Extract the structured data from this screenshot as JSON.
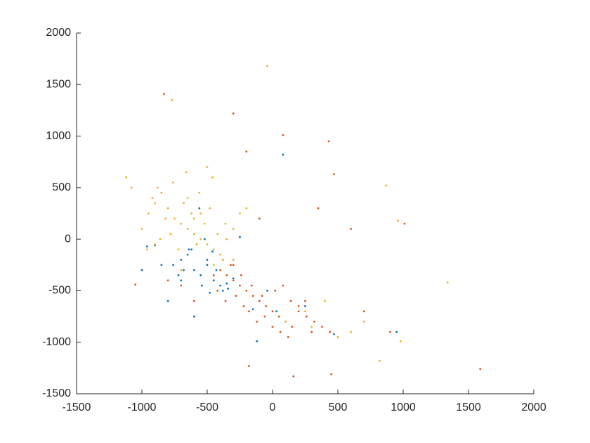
{
  "chart_data": {
    "type": "scatter",
    "xlim": [
      -1500,
      2000
    ],
    "xticks": [
      -1500,
      -1000,
      -500,
      0,
      500,
      1000,
      1500,
      2000
    ],
    "ylim": [
      -1500,
      2000
    ],
    "yticks": [
      -1500,
      -1000,
      -500,
      0,
      500,
      1000,
      1500,
      2000
    ],
    "series": [
      {
        "color": "#0072BD",
        "x": [
          -700,
          -650,
          -600,
          -550,
          -500,
          -450,
          -400,
          -620,
          -580,
          -520,
          -480,
          -350,
          -300,
          -680,
          -720,
          -760,
          -560,
          -430,
          -380,
          -640,
          -150,
          80,
          950,
          -1000,
          -800,
          -600,
          30,
          250,
          470,
          -850,
          -900,
          -500,
          -460,
          -540,
          -340,
          -120,
          -40,
          -250,
          -960,
          -700
        ],
        "y": [
          -200,
          -150,
          -300,
          -350,
          -250,
          -400,
          -450,
          -100,
          -50,
          0,
          -520,
          -430,
          -380,
          -300,
          -350,
          -250,
          300,
          -300,
          -500,
          -100,
          -680,
          820,
          -900,
          -300,
          -600,
          -750,
          -700,
          -650,
          -920,
          -250,
          -60,
          -200,
          -120,
          -450,
          -480,
          -990,
          -500,
          20,
          -70,
          -400
        ]
      },
      {
        "color": "#D95319",
        "x": [
          -400,
          -350,
          -300,
          -250,
          -200,
          -150,
          -100,
          -50,
          0,
          50,
          100,
          150,
          200,
          250,
          300,
          -380,
          -320,
          -280,
          -220,
          -180,
          -120,
          -60,
          20,
          80,
          140,
          200,
          260,
          320,
          380,
          440,
          -450,
          -420,
          -360,
          -300,
          -240,
          -160,
          -80,
          0,
          60,
          120,
          1590,
          1010,
          -830,
          -300,
          80,
          430,
          470,
          -180,
          160,
          450,
          900,
          -600,
          -700,
          -200,
          -100,
          600,
          700,
          -1050,
          -800,
          350
        ],
        "y": [
          -300,
          -350,
          -400,
          -450,
          -500,
          -550,
          -600,
          -650,
          -700,
          -750,
          -800,
          -850,
          -700,
          -600,
          -900,
          -200,
          -250,
          -550,
          -650,
          -700,
          -800,
          -750,
          -500,
          -450,
          -600,
          -650,
          -750,
          -800,
          -850,
          -900,
          -350,
          -500,
          -600,
          -250,
          -350,
          -450,
          -550,
          -850,
          -900,
          -950,
          -1260,
          150,
          1410,
          1220,
          1010,
          950,
          630,
          -1230,
          -1330,
          -1310,
          -900,
          -600,
          -450,
          850,
          200,
          100,
          -700,
          -440,
          -400,
          300
        ]
      },
      {
        "color": "#EDB120",
        "x": [
          -1000,
          -950,
          -900,
          -850,
          -800,
          -750,
          -700,
          -650,
          -600,
          -550,
          -500,
          -450,
          -400,
          -350,
          -300,
          -920,
          -880,
          -820,
          -780,
          -720,
          -680,
          -620,
          -580,
          -520,
          -480,
          -420,
          -380,
          -860,
          -760,
          -660,
          -560,
          -460,
          -360,
          -960,
          -1080,
          -1120,
          -40,
          -770,
          1340,
          870,
          960,
          820,
          980,
          100,
          300,
          500,
          700,
          -250,
          -200,
          -300,
          -700,
          -650,
          -550,
          -450,
          250,
          400,
          600,
          -900,
          -600,
          -500
        ],
        "y": [
          100,
          250,
          350,
          450,
          300,
          200,
          150,
          100,
          50,
          0,
          -50,
          -100,
          -150,
          0,
          100,
          400,
          500,
          200,
          50,
          -100,
          350,
          250,
          -50,
          150,
          300,
          50,
          -200,
          0,
          550,
          650,
          450,
          600,
          150,
          -100,
          500,
          600,
          1680,
          1350,
          -420,
          520,
          180,
          -1180,
          -990,
          -800,
          -850,
          -950,
          -800,
          250,
          300,
          -200,
          -300,
          400,
          250,
          -250,
          -700,
          -600,
          -900,
          -50,
          200,
          700
        ]
      }
    ]
  }
}
